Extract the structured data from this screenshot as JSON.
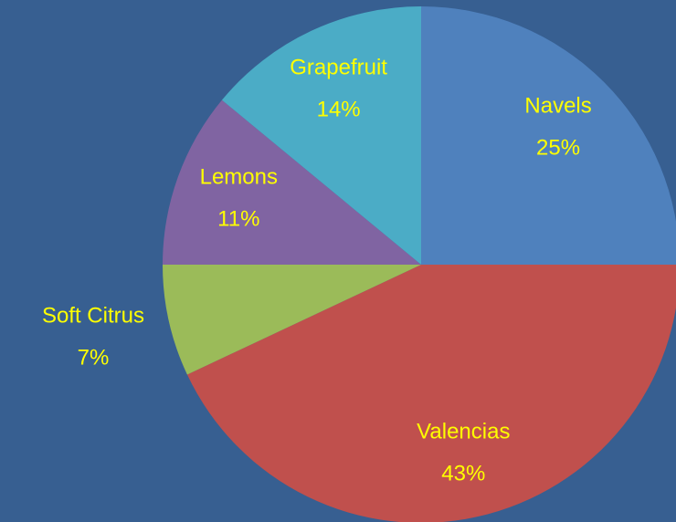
{
  "chart_data": {
    "type": "pie",
    "categories": [
      "Navels",
      "Valencias",
      "Soft Citrus",
      "Lemons",
      "Grapefruit"
    ],
    "values": [
      25,
      43,
      7,
      11,
      14
    ],
    "value_labels": [
      "25%",
      "43%",
      "7%",
      "11%",
      "14%"
    ],
    "colors": [
      "#4f81bd",
      "#c0504d",
      "#9bbb59",
      "#8064a2",
      "#4bacc6"
    ]
  }
}
